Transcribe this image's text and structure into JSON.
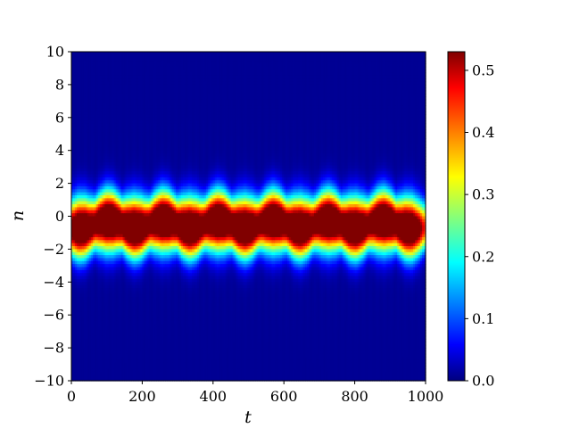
{
  "chart_data": {
    "type": "heatmap",
    "xlabel": "t",
    "ylabel": "n",
    "xlim": [
      0,
      1000
    ],
    "ylim": [
      -10,
      10
    ],
    "x_ticks": [
      "0",
      "200",
      "400",
      "600",
      "800",
      "1000"
    ],
    "y_ticks": [
      "10",
      "8",
      "6",
      "4",
      "2",
      "0",
      "−2",
      "−4",
      "−6",
      "−8",
      "−10"
    ],
    "colorbar": {
      "range": [
        0,
        0.53
      ],
      "ticks": [
        "0.5",
        "0.4",
        "0.3",
        "0.2",
        "0.1",
        "0.0"
      ],
      "colormap": "jet"
    },
    "breather": {
      "description": "Two-site oscillating lattice excitation",
      "period": 155,
      "sites": [
        {
          "n": 0,
          "peak_times": [
            105,
            260,
            415,
            570,
            725,
            880
          ],
          "peak_value": 0.53
        },
        {
          "n": -1,
          "peak_times": [
            25,
            180,
            335,
            490,
            645,
            800,
            955
          ],
          "peak_value": 0.53
        }
      ]
    }
  }
}
